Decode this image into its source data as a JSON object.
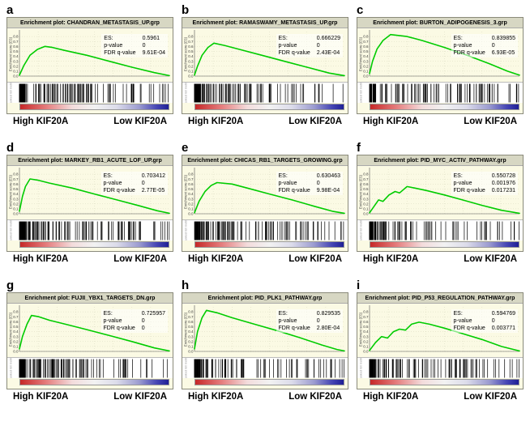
{
  "figure": {
    "high_label": "High KIF20A",
    "low_label": "Low KIF20A",
    "y_axis_label": "Enrichment score (ES)",
    "lower_left_label": "Ranked list metric",
    "title_prefix": "Enrichment plot:",
    "stats_labels": {
      "es": "ES:",
      "p": "p-value",
      "fdr": "FDR q-value"
    },
    "curve_color": "#00cc00",
    "panel_bg": "#fbfae4",
    "gradient_ends": [
      "#c62828",
      "#1f1f96"
    ]
  },
  "chart_data": [
    {
      "type": "line",
      "panel": "a",
      "gene_set": "CHANDRAN_METASTASIS_UP.grp",
      "title": "Enrichment plot: CHANDRAN_METASTASIS_UP.grp",
      "es": "0.5961",
      "p_value": "0",
      "fdr_q": "9.61E-04",
      "seed": 11,
      "hits": 115,
      "ylim": [
        0,
        0.9
      ],
      "curve": [
        [
          0,
          0.02
        ],
        [
          0.03,
          0.22
        ],
        [
          0.07,
          0.42
        ],
        [
          0.12,
          0.54
        ],
        [
          0.17,
          0.6
        ],
        [
          0.22,
          0.58
        ],
        [
          0.3,
          0.52
        ],
        [
          0.45,
          0.42
        ],
        [
          0.6,
          0.3
        ],
        [
          0.75,
          0.18
        ],
        [
          0.9,
          0.07
        ],
        [
          1,
          0.01
        ]
      ]
    },
    {
      "type": "line",
      "panel": "b",
      "gene_set": "RAMASWAMY_METASTASIS_UP.grp",
      "title": "Enrichment plot: RAMASWAMY_METASTASIS_UP.grp",
      "es": "0.666229",
      "p_value": "0",
      "fdr_q": "2.43E-04",
      "seed": 22,
      "hits": 110,
      "ylim": [
        0,
        0.9
      ],
      "curve": [
        [
          0,
          0.02
        ],
        [
          0.02,
          0.2
        ],
        [
          0.05,
          0.42
        ],
        [
          0.09,
          0.58
        ],
        [
          0.13,
          0.666
        ],
        [
          0.2,
          0.62
        ],
        [
          0.3,
          0.54
        ],
        [
          0.45,
          0.42
        ],
        [
          0.6,
          0.3
        ],
        [
          0.75,
          0.18
        ],
        [
          0.9,
          0.06
        ],
        [
          1,
          0.01
        ]
      ]
    },
    {
      "type": "line",
      "panel": "c",
      "gene_set": "BURTON_ADIPOGENESIS_3.grp",
      "title": "Enrichment plot: BURTON_ADIPOGENESIS_3.grp",
      "es": "0.839855",
      "p_value": "0",
      "fdr_q": "6.93E-05",
      "seed": 33,
      "hits": 95,
      "ylim": [
        0,
        0.9
      ],
      "curve": [
        [
          0,
          0.05
        ],
        [
          0.02,
          0.3
        ],
        [
          0.05,
          0.55
        ],
        [
          0.09,
          0.72
        ],
        [
          0.14,
          0.84
        ],
        [
          0.25,
          0.8
        ],
        [
          0.35,
          0.72
        ],
        [
          0.5,
          0.58
        ],
        [
          0.65,
          0.42
        ],
        [
          0.8,
          0.25
        ],
        [
          0.92,
          0.1
        ],
        [
          1,
          0.02
        ]
      ]
    },
    {
      "type": "line",
      "panel": "d",
      "gene_set": "MARKEY_RB1_ACUTE_LOF_UP.grp",
      "title": "Enrichment plot: MARKEY_RB1_ACUTE_LOF_UP.grp",
      "es": "0.703412",
      "p_value": "0",
      "fdr_q": "2.77E-05",
      "seed": 44,
      "hits": 120,
      "ylim": [
        0,
        0.9
      ],
      "curve": [
        [
          0,
          0.05
        ],
        [
          0.02,
          0.35
        ],
        [
          0.04,
          0.55
        ],
        [
          0.07,
          0.703
        ],
        [
          0.12,
          0.68
        ],
        [
          0.2,
          0.62
        ],
        [
          0.35,
          0.52
        ],
        [
          0.5,
          0.4
        ],
        [
          0.65,
          0.28
        ],
        [
          0.8,
          0.16
        ],
        [
          0.92,
          0.06
        ],
        [
          1,
          0.01
        ]
      ]
    },
    {
      "type": "line",
      "panel": "e",
      "gene_set": "CHICAS_RB1_TARGETS_GROWING.grp",
      "title": "Enrichment plot: CHICAS_RB1_TARGETS_GROWING.grp",
      "es": "0.630463",
      "p_value": "0",
      "fdr_q": "9.98E-04",
      "seed": 55,
      "hits": 125,
      "ylim": [
        0,
        0.9
      ],
      "curve": [
        [
          0,
          0.02
        ],
        [
          0.03,
          0.25
        ],
        [
          0.07,
          0.45
        ],
        [
          0.11,
          0.57
        ],
        [
          0.15,
          0.63
        ],
        [
          0.25,
          0.6
        ],
        [
          0.35,
          0.52
        ],
        [
          0.5,
          0.4
        ],
        [
          0.65,
          0.28
        ],
        [
          0.8,
          0.15
        ],
        [
          0.92,
          0.05
        ],
        [
          1,
          0.01
        ]
      ]
    },
    {
      "type": "line",
      "panel": "f",
      "gene_set": "PID_MYC_ACTIV_PATHWAY.grp",
      "title": "Enrichment plot: PID_MYC_ACTIV_PATHWAY.grp",
      "es": "0.550728",
      "p_value": "0.001976",
      "fdr_q": "0.017231",
      "seed": 66,
      "hits": 85,
      "ylim": [
        0,
        0.9
      ],
      "curve": [
        [
          0,
          0.02
        ],
        [
          0.03,
          0.15
        ],
        [
          0.06,
          0.28
        ],
        [
          0.09,
          0.25
        ],
        [
          0.13,
          0.38
        ],
        [
          0.17,
          0.45
        ],
        [
          0.2,
          0.42
        ],
        [
          0.25,
          0.55
        ],
        [
          0.3,
          0.52
        ],
        [
          0.38,
          0.47
        ],
        [
          0.5,
          0.38
        ],
        [
          0.62,
          0.28
        ],
        [
          0.75,
          0.17
        ],
        [
          0.88,
          0.07
        ],
        [
          1,
          0.01
        ]
      ]
    },
    {
      "type": "line",
      "panel": "g",
      "gene_set": "FUJII_YBX1_TARGETS_DN.grp",
      "title": "Enrichment plot: FUJII_YBX1_TARGETS_DN.grp",
      "es": "0.725957",
      "p_value": "0",
      "fdr_q": "0",
      "seed": 77,
      "hits": 115,
      "ylim": [
        0,
        0.9
      ],
      "curve": [
        [
          0,
          0.05
        ],
        [
          0.02,
          0.3
        ],
        [
          0.05,
          0.55
        ],
        [
          0.08,
          0.726
        ],
        [
          0.13,
          0.7
        ],
        [
          0.2,
          0.63
        ],
        [
          0.32,
          0.54
        ],
        [
          0.45,
          0.44
        ],
        [
          0.6,
          0.32
        ],
        [
          0.75,
          0.2
        ],
        [
          0.9,
          0.07
        ],
        [
          1,
          0.01
        ]
      ]
    },
    {
      "type": "line",
      "panel": "h",
      "gene_set": "PID_PLK1_PATHWAY.grp",
      "title": "Enrichment plot: PID_PLK1_PATHWAY.grp",
      "es": "0.829535",
      "p_value": "0",
      "fdr_q": "2.80E-04",
      "seed": 88,
      "hits": 90,
      "ylim": [
        0,
        0.9
      ],
      "curve": [
        [
          0,
          0.05
        ],
        [
          0.02,
          0.4
        ],
        [
          0.05,
          0.68
        ],
        [
          0.08,
          0.83
        ],
        [
          0.15,
          0.78
        ],
        [
          0.25,
          0.68
        ],
        [
          0.4,
          0.55
        ],
        [
          0.55,
          0.42
        ],
        [
          0.7,
          0.28
        ],
        [
          0.85,
          0.13
        ],
        [
          0.95,
          0.04
        ],
        [
          1,
          0.01
        ]
      ]
    },
    {
      "type": "line",
      "panel": "i",
      "gene_set": "PID_P53_REGULATION_PATHWAY.grp",
      "title": "Enrichment plot: PID_P53_REGULATION_PATHWAY.grp",
      "es": "0.594769",
      "p_value": "0",
      "fdr_q": "0.003771",
      "seed": 99,
      "hits": 100,
      "ylim": [
        0,
        0.9
      ],
      "curve": [
        [
          0,
          0.02
        ],
        [
          0.04,
          0.18
        ],
        [
          0.08,
          0.3
        ],
        [
          0.12,
          0.27
        ],
        [
          0.16,
          0.4
        ],
        [
          0.2,
          0.45
        ],
        [
          0.24,
          0.43
        ],
        [
          0.28,
          0.55
        ],
        [
          0.33,
          0.59
        ],
        [
          0.4,
          0.55
        ],
        [
          0.5,
          0.47
        ],
        [
          0.62,
          0.36
        ],
        [
          0.75,
          0.24
        ],
        [
          0.88,
          0.1
        ],
        [
          1,
          0.01
        ]
      ]
    }
  ]
}
